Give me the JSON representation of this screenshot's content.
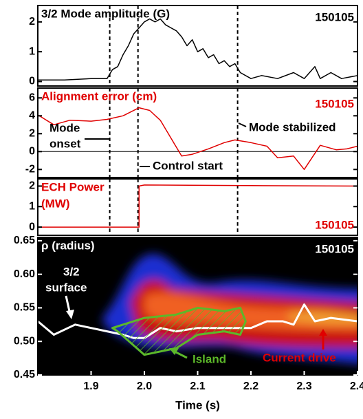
{
  "chart_data": [
    {
      "type": "line",
      "title": "3/2 Mode amplitude (G)",
      "title_color": "#000000",
      "shot": "150105",
      "shot_color": "#000000",
      "xlim": [
        1.8,
        2.4
      ],
      "ylim": [
        -0.15,
        2.55
      ],
      "yticks": [
        0,
        1,
        2
      ],
      "vlines": [
        1.935,
        1.988,
        2.175
      ],
      "series": [
        {
          "color": "#000000",
          "x": [
            1.8,
            1.85,
            1.9,
            1.93,
            1.94,
            1.95,
            1.96,
            1.97,
            1.98,
            1.99,
            2.0,
            2.01,
            2.02,
            2.03,
            2.04,
            2.05,
            2.06,
            2.07,
            2.08,
            2.09,
            2.1,
            2.11,
            2.12,
            2.13,
            2.14,
            2.15,
            2.16,
            2.17,
            2.18,
            2.2,
            2.22,
            2.25,
            2.28,
            2.3,
            2.32,
            2.33,
            2.35,
            2.37,
            2.4
          ],
          "values": [
            0.05,
            0.05,
            0.1,
            0.1,
            0.4,
            0.5,
            0.9,
            1.2,
            1.6,
            1.8,
            2.0,
            2.1,
            2.0,
            2.1,
            1.9,
            1.8,
            1.7,
            1.5,
            1.2,
            1.4,
            1.0,
            1.1,
            0.8,
            0.9,
            0.6,
            0.7,
            0.5,
            0.6,
            0.3,
            0.1,
            0.2,
            0.1,
            0.3,
            0.1,
            0.5,
            0.1,
            0.3,
            0.1,
            0.2
          ]
        }
      ]
    },
    {
      "type": "line",
      "title": "Alignment error (cm)",
      "title_color": "#e00000",
      "shot": "150105",
      "shot_color": "#e00000",
      "xlim": [
        1.8,
        2.4
      ],
      "ylim": [
        -2.9,
        7.1
      ],
      "yticks": [
        -2,
        0,
        2,
        4,
        6
      ],
      "zero_line": true,
      "vlines": [
        1.935,
        1.988,
        2.175
      ],
      "annotations": [
        {
          "text": "Mode"
        },
        {
          "text": "onset"
        },
        {
          "text": "Control start"
        },
        {
          "text": "Mode stabilized"
        }
      ],
      "series": [
        {
          "color": "#e00000",
          "x": [
            1.8,
            1.83,
            1.86,
            1.9,
            1.93,
            1.96,
            1.99,
            2.01,
            2.03,
            2.05,
            2.07,
            2.09,
            2.12,
            2.15,
            2.17,
            2.2,
            2.23,
            2.25,
            2.28,
            2.3,
            2.33,
            2.36,
            2.38,
            2.4
          ],
          "values": [
            4.1,
            3.0,
            3.5,
            3.4,
            3.6,
            4.0,
            4.9,
            4.6,
            3.5,
            1.5,
            -0.5,
            -0.3,
            0.3,
            1.0,
            1.3,
            1.0,
            0.6,
            -0.7,
            -0.5,
            -2.0,
            0.7,
            0.2,
            0.3,
            0.6
          ]
        }
      ]
    },
    {
      "type": "line",
      "title": [
        "ECH Power",
        "(MW)"
      ],
      "title_color": "#e00000",
      "shot": "150105",
      "shot_color": "#e00000",
      "xlim": [
        1.8,
        2.4
      ],
      "ylim": [
        -0.4,
        2.35
      ],
      "yticks": [
        0,
        1,
        2
      ],
      "vlines": [
        1.935,
        1.988,
        2.175
      ],
      "series": [
        {
          "color": "#e00000",
          "x": [
            1.8,
            1.99,
            1.99,
            2.0,
            2.2,
            2.4
          ],
          "values": [
            0,
            0,
            2.0,
            2.05,
            2.02,
            2.0
          ]
        }
      ]
    },
    {
      "type": "line",
      "title": "ρ (radius)",
      "title_color": "#ffffff",
      "shot": "150105",
      "shot_color": "#ffffff",
      "xlim": [
        1.8,
        2.4
      ],
      "ylim": [
        0.45,
        0.655
      ],
      "yticks": [
        0.45,
        {
          "value": 0.5,
          "label": "0.50"
        },
        0.55,
        {
          "value": 0.6,
          "label": "0.60"
        },
        0.65
      ],
      "xticks": [
        1.9,
        {
          "value": 2.0,
          "label": "2.0"
        },
        2.1,
        2.2,
        2.3,
        2.4
      ],
      "xlabel": "Time (s)",
      "annotations": [
        {
          "text": "3/2",
          "color": "#ffffff"
        },
        {
          "text": "surface",
          "color": "#ffffff"
        },
        {
          "text": "Island",
          "color": "#5cb82a"
        },
        {
          "text": "Current drive",
          "color": "#e00000"
        }
      ],
      "series": [
        {
          "color": "#ffffff",
          "x": [
            1.8,
            1.83,
            1.87,
            1.9,
            1.93,
            1.96,
            1.98,
            2.0,
            2.03,
            2.06,
            2.1,
            2.15,
            2.2,
            2.23,
            2.26,
            2.28,
            2.3,
            2.32,
            2.35,
            2.4
          ],
          "values": [
            0.53,
            0.51,
            0.525,
            0.52,
            0.515,
            0.51,
            0.505,
            0.505,
            0.52,
            0.515,
            0.52,
            0.52,
            0.52,
            0.53,
            0.53,
            0.525,
            0.555,
            0.53,
            0.535,
            0.53
          ]
        },
        {
          "color": "#5cb82a",
          "closed": true,
          "x": [
            1.94,
            2.0,
            2.06,
            2.1,
            2.15,
            2.18,
            2.19,
            2.18,
            2.15,
            2.1,
            2.06,
            2.0,
            1.95
          ],
          "values": [
            0.52,
            0.535,
            0.54,
            0.55,
            0.545,
            0.55,
            0.53,
            0.51,
            0.515,
            0.51,
            0.49,
            0.48,
            0.515
          ]
        }
      ]
    }
  ]
}
